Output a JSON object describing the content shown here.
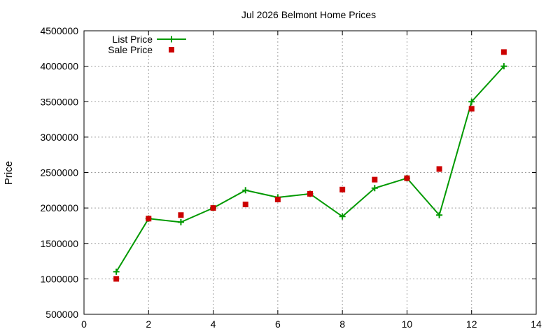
{
  "chart_data": {
    "type": "line",
    "title": "Jul 2026 Belmont Home Prices",
    "xlabel": "",
    "ylabel": "Price",
    "xlim": [
      0,
      14
    ],
    "ylim": [
      500000,
      4500000
    ],
    "xticks": [
      0,
      2,
      4,
      6,
      8,
      10,
      12,
      14
    ],
    "yticks": [
      500000,
      1000000,
      1500000,
      2000000,
      2500000,
      3000000,
      3500000,
      4000000,
      4500000
    ],
    "grid": true,
    "legend_position": "top-left",
    "series": [
      {
        "name": "List Price",
        "style": "linespoints",
        "marker": "plus",
        "color": "#009900",
        "points": [
          [
            1,
            1100000
          ],
          [
            2,
            1850000
          ],
          [
            3,
            1800000
          ],
          [
            4,
            2000000
          ],
          [
            5,
            2250000
          ],
          [
            6,
            2150000
          ],
          [
            7,
            2200000
          ],
          [
            8,
            1880000
          ],
          [
            9,
            2280000
          ],
          [
            10,
            2420000
          ],
          [
            11,
            1900000
          ],
          [
            12,
            3500000
          ],
          [
            13,
            4000000
          ]
        ]
      },
      {
        "name": "Sale Price",
        "style": "points",
        "marker": "square",
        "color": "#cc0000",
        "points": [
          [
            1,
            1000000
          ],
          [
            2,
            1850000
          ],
          [
            3,
            1900000
          ],
          [
            4,
            2000000
          ],
          [
            5,
            2050000
          ],
          [
            6,
            2120000
          ],
          [
            7,
            2200000
          ],
          [
            8,
            2260000
          ],
          [
            9,
            2400000
          ],
          [
            10,
            2420000
          ],
          [
            11,
            2550000
          ],
          [
            12,
            3400000
          ],
          [
            13,
            4200000
          ]
        ]
      }
    ]
  }
}
